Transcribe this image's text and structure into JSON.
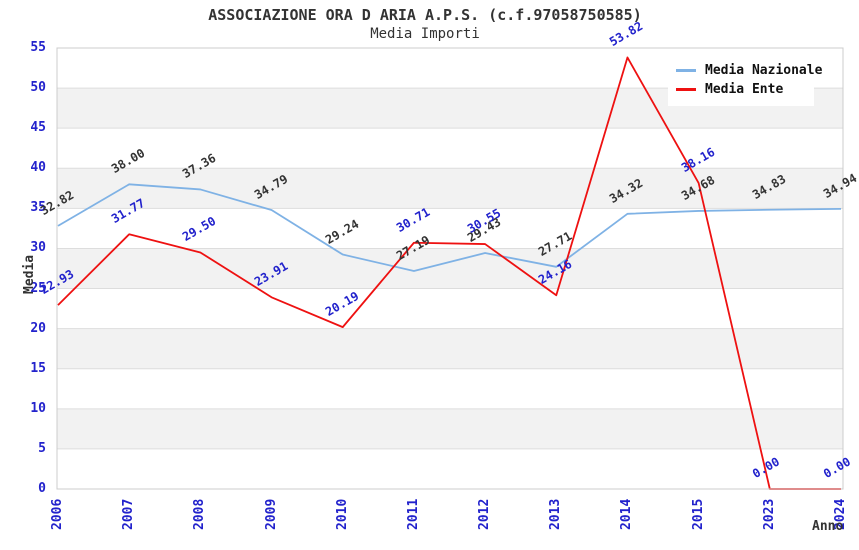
{
  "chart_data": {
    "type": "line",
    "title": "ASSOCIAZIONE ORA D ARIA A.P.S. (c.f.97058750585)",
    "subtitle": "Media Importi",
    "xlabel": "Anno",
    "ylabel": "Media",
    "categories": [
      "2006",
      "2007",
      "2008",
      "2009",
      "2010",
      "2011",
      "2012",
      "2013",
      "2014",
      "2015",
      "2023",
      "2024"
    ],
    "ylim": [
      0,
      55
    ],
    "yticks": [
      "0",
      "5",
      "10",
      "15",
      "20",
      "25",
      "30",
      "35",
      "40",
      "45",
      "50",
      "55"
    ],
    "grid": "horizontal gridlines every 5 units with alternating light-gray bands",
    "legend_position": "top-right",
    "series": [
      {
        "name": "Media Nazionale",
        "color": "#7fb2e5",
        "label_color": "#333333",
        "values": [
          32.82,
          38.0,
          37.36,
          34.79,
          29.24,
          27.19,
          29.43,
          27.71,
          34.32,
          34.68,
          34.83,
          34.94
        ],
        "labels": [
          "32.82",
          "38.00",
          "37.36",
          "34.79",
          "29.24",
          "27.19",
          "29.43",
          "27.71",
          "34.32",
          "34.68",
          "34.83",
          "34.94"
        ]
      },
      {
        "name": "Media Ente",
        "color": "#ee1111",
        "label_color": "#2222cc",
        "values": [
          22.93,
          31.77,
          29.5,
          23.91,
          20.19,
          30.71,
          30.55,
          24.16,
          53.82,
          38.16,
          0.0,
          0.0
        ],
        "labels": [
          "22.93",
          "31.77",
          "29.50",
          "23.91",
          "20.19",
          "30.71",
          "30.55",
          "24.16",
          "53.82",
          "38.16",
          "0.00",
          "0.00"
        ]
      }
    ]
  },
  "colors": {
    "tick_label": "#2222cc",
    "band": "#f2f2f2",
    "gridline": "#dddddd",
    "frame": "#cccccc",
    "dark_text": "#333333",
    "background": "#ffffff"
  }
}
